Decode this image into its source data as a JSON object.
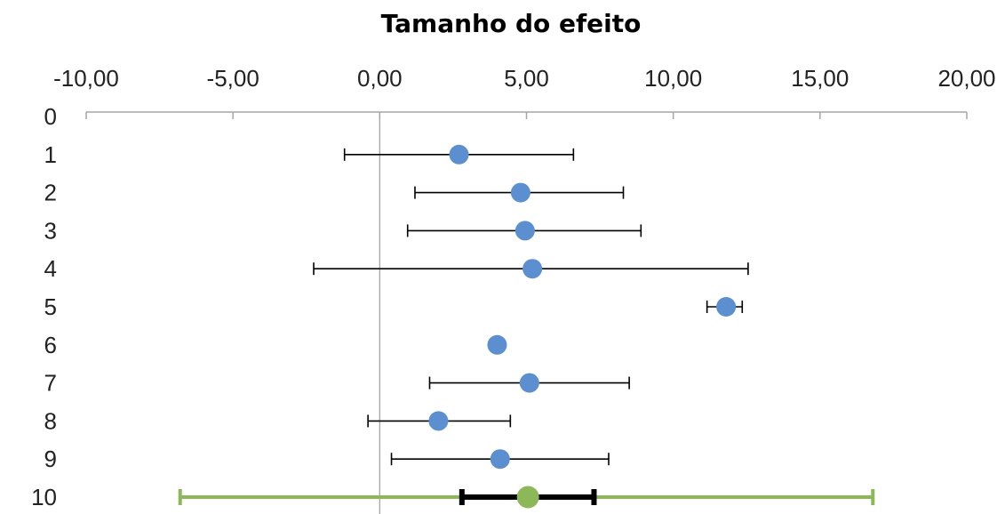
{
  "chart_data": {
    "type": "scatter",
    "title": "Tamanho do efeito",
    "xlim": [
      -10,
      20
    ],
    "x_ticks": [
      -10,
      -5,
      0,
      5,
      10,
      15,
      20
    ],
    "x_tick_labels": [
      "-10,00",
      "-5,00",
      "0,00",
      "5,00",
      "10,00",
      "15,00",
      "20,00"
    ],
    "y_categories": [
      "0",
      "1",
      "2",
      "3",
      "4",
      "5",
      "6",
      "7",
      "8",
      "9",
      "10"
    ],
    "reference_line_x": 0,
    "studies": [
      {
        "row": 1,
        "effect": 2.7,
        "ci_low": -1.2,
        "ci_high": 6.6
      },
      {
        "row": 2,
        "effect": 4.8,
        "ci_low": 1.2,
        "ci_high": 8.3
      },
      {
        "row": 3,
        "effect": 4.95,
        "ci_low": 0.95,
        "ci_high": 8.9
      },
      {
        "row": 4,
        "effect": 5.2,
        "ci_low": -2.25,
        "ci_high": 12.55
      },
      {
        "row": 5,
        "effect": 11.8,
        "ci_low": 11.15,
        "ci_high": 12.35
      },
      {
        "row": 6,
        "effect": 4.0,
        "ci_low": null,
        "ci_high": null
      },
      {
        "row": 7,
        "effect": 5.1,
        "ci_low": 1.7,
        "ci_high": 8.5
      },
      {
        "row": 8,
        "effect": 2.0,
        "ci_low": -0.4,
        "ci_high": 4.45
      },
      {
        "row": 9,
        "effect": 4.1,
        "ci_low": 0.4,
        "ci_high": 7.8
      }
    ],
    "pooled": {
      "row": 10,
      "effect": 5.05,
      "ci_low": 2.8,
      "ci_high": 7.3,
      "pi_low": -6.8,
      "pi_high": 16.8
    },
    "colors": {
      "study_marker": "#5b8fcf",
      "study_ci": "#000000",
      "pooled_marker": "#8db85a",
      "pooled_ci": "#000000",
      "prediction_interval": "#8db85a",
      "axis": "#a6a6a6"
    },
    "grid": false
  }
}
